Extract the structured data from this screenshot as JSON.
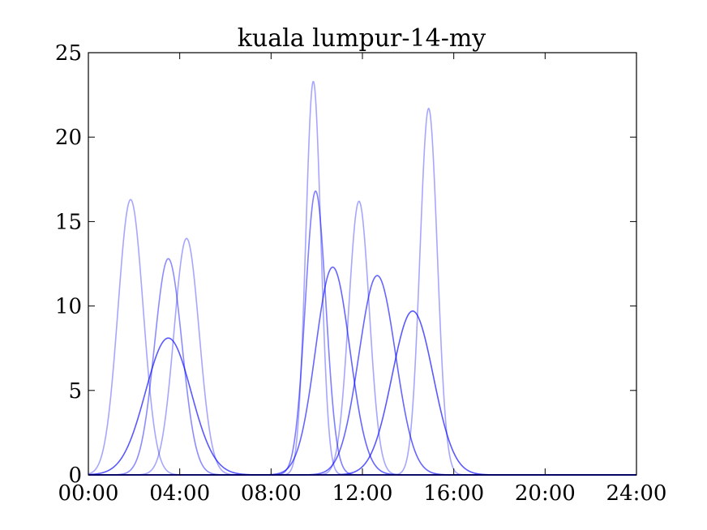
{
  "chart_data": {
    "type": "line",
    "title": "kuala lumpur-14-my",
    "xlabel": "",
    "ylabel": "",
    "xlim": [
      0,
      24
    ],
    "ylim": [
      0,
      25
    ],
    "x_ticks": [
      0,
      4,
      8,
      12,
      16,
      20,
      24
    ],
    "x_tick_labels": [
      "00:00",
      "04:00",
      "08:00",
      "12:00",
      "16:00",
      "20:00",
      "24:00"
    ],
    "y_ticks": [
      0,
      5,
      10,
      15,
      20,
      25
    ],
    "y_tick_labels": [
      "0",
      "5",
      "10",
      "15",
      "20",
      "25"
    ],
    "grid": false,
    "legend": "none",
    "line_color": "#0000ff",
    "curve_shape": "gaussian",
    "series": [
      {
        "peak_time": 1.85,
        "peak_value": 16.3,
        "spread_hours": 0.55,
        "opacity": 0.35
      },
      {
        "peak_time": 3.5,
        "peak_value": 12.8,
        "spread_hours": 0.6,
        "opacity": 0.45
      },
      {
        "peak_time": 3.5,
        "peak_value": 8.1,
        "spread_hours": 1.0,
        "opacity": 0.65
      },
      {
        "peak_time": 4.3,
        "peak_value": 14.0,
        "spread_hours": 0.55,
        "opacity": 0.35
      },
      {
        "peak_time": 9.85,
        "peak_value": 23.3,
        "spread_hours": 0.33,
        "opacity": 0.35
      },
      {
        "peak_time": 9.95,
        "peak_value": 16.8,
        "spread_hours": 0.45,
        "opacity": 0.5
      },
      {
        "peak_time": 10.7,
        "peak_value": 12.3,
        "spread_hours": 0.75,
        "opacity": 0.6
      },
      {
        "peak_time": 11.85,
        "peak_value": 16.2,
        "spread_hours": 0.45,
        "opacity": 0.35
      },
      {
        "peak_time": 12.65,
        "peak_value": 11.8,
        "spread_hours": 0.8,
        "opacity": 0.6
      },
      {
        "peak_time": 14.2,
        "peak_value": 9.7,
        "spread_hours": 0.9,
        "opacity": 0.65
      },
      {
        "peak_time": 14.9,
        "peak_value": 21.7,
        "spread_hours": 0.38,
        "opacity": 0.35
      }
    ]
  }
}
